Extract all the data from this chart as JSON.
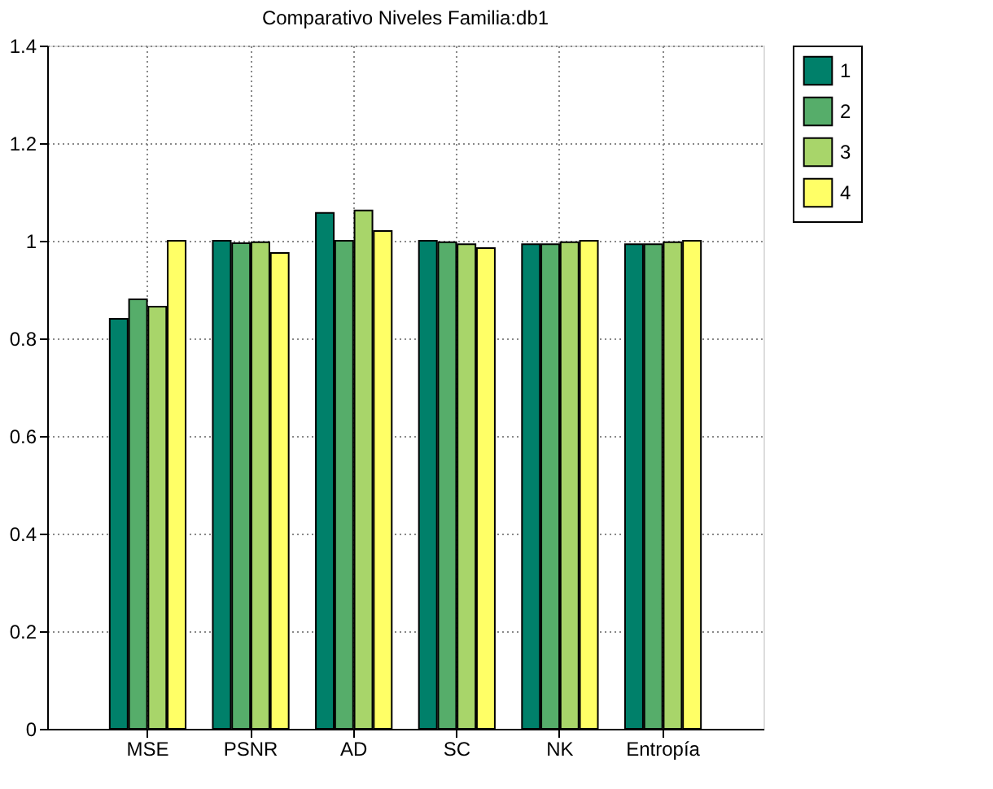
{
  "chart_data": {
    "type": "bar",
    "title": "Comparativo Niveles Familia:db1",
    "categories": [
      "MSE",
      "PSNR",
      "AD",
      "SC",
      "NK",
      "Entropía"
    ],
    "series": [
      {
        "name": "1",
        "color": "#00806a",
        "values": [
          0.84,
          1.0,
          1.057,
          1.0,
          0.993,
          0.993
        ]
      },
      {
        "name": "2",
        "color": "#56ad6a",
        "values": [
          0.88,
          0.995,
          1.0,
          0.997,
          0.993,
          0.993
        ]
      },
      {
        "name": "3",
        "color": "#a8d56a",
        "values": [
          0.865,
          0.997,
          1.062,
          0.993,
          0.997,
          0.997
        ]
      },
      {
        "name": "4",
        "color": "#ffff66",
        "values": [
          1.0,
          0.975,
          1.02,
          0.985,
          1.0,
          1.0
        ]
      }
    ],
    "ylim": [
      0,
      1.4
    ],
    "yticks": [
      0,
      0.2,
      0.4,
      0.6,
      0.8,
      1,
      1.2,
      1.4
    ],
    "grid": true,
    "legend": "top right"
  }
}
